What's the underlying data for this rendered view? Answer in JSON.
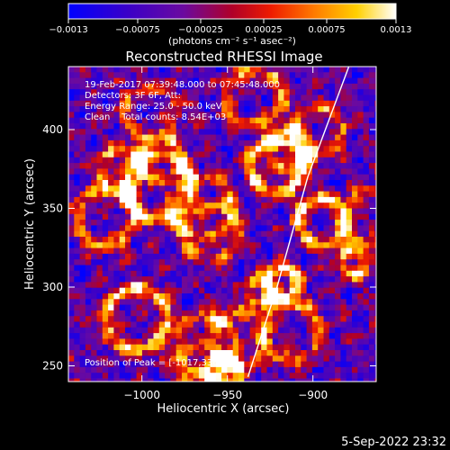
{
  "chart_data": {
    "type": "heatmap",
    "title": "Reconstructed RHESSI Image",
    "xlabel": "Heliocentric X (arcsec)",
    "ylabel": "Heliocentric Y (arcsec)",
    "xlim": [
      -1043,
      -863
    ],
    "ylim": [
      240,
      440
    ],
    "xticks": [
      -1000,
      -950,
      -900
    ],
    "xtick_labels": [
      "−1000",
      "−950",
      "−900"
    ],
    "yticks": [
      250,
      300,
      350,
      400
    ],
    "ytick_labels": [
      "250",
      "300",
      "350",
      "400"
    ],
    "colorbar": {
      "min": -0.0013,
      "max": 0.0013,
      "ticks": [
        -0.0013,
        -0.00075,
        -0.00025,
        0.00025,
        0.00075,
        0.0013
      ],
      "tick_labels": [
        "−0.0013",
        "−0.00075",
        "−0.00025",
        "0.00025",
        "0.00075",
        "0.0013"
      ],
      "unit_label": "(photons cm⁻² s⁻¹ asec⁻²)",
      "colormap": "blue-purple-red-orange-yellow-white"
    },
    "annotations": {
      "time": "19-Feb-2017 07:39:48.000 to 07:45:48.000",
      "detectors": "Detectors: 3F 6F, Att:",
      "energy": "Energy Range: 25.0 - 50.0 keV",
      "clean": "Clean    Total counts: 8.54E+03",
      "peak": "Position of Peak = [-1017,336]"
    },
    "limb_line": {
      "points": [
        [
          -938,
          243
        ],
        [
          -921,
          300
        ],
        [
          -903,
          370
        ],
        [
          -879,
          440
        ]
      ]
    },
    "peak_position": [
      -1017,
      336
    ],
    "grid": false
  },
  "footer": {
    "timestamp": "5-Sep-2022 23:32"
  }
}
